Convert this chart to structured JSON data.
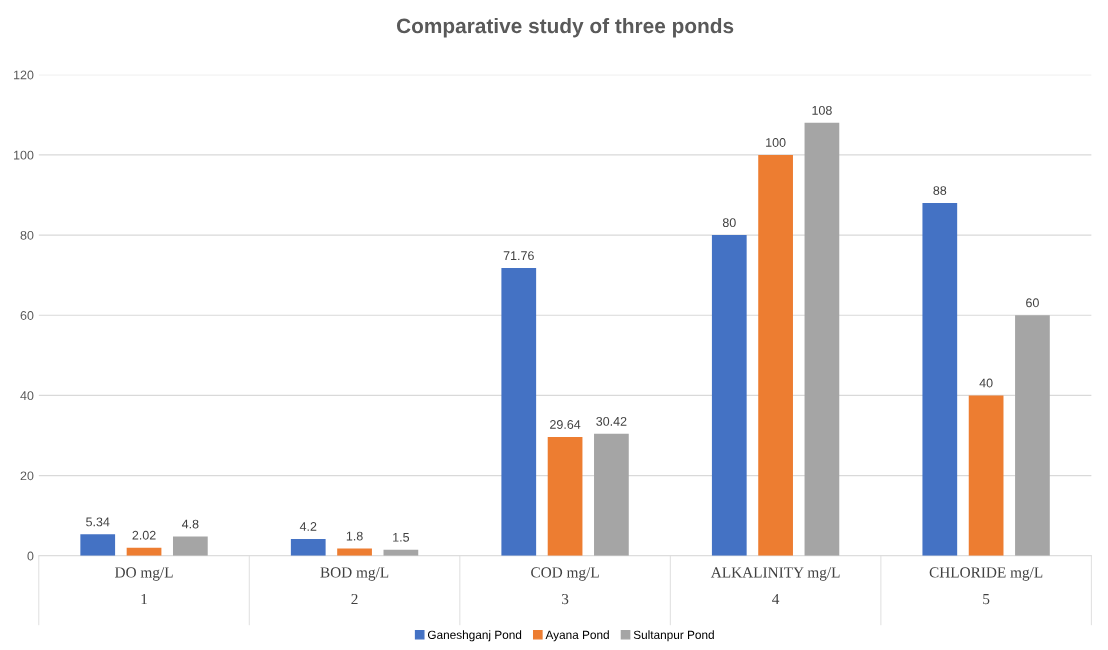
{
  "chart_data": {
    "type": "bar",
    "title": "Comparative study of three ponds",
    "categories": [
      "DO mg/L\n1",
      "BOD mg/L\n2",
      "COD mg/L\n3",
      "ALKALINITY mg/L\n4",
      "CHLORIDE mg/L\n5"
    ],
    "series": [
      {
        "name": "Ganeshganj Pond",
        "color": "#4472c4",
        "values": [
          5.34,
          4.2,
          71.76,
          80,
          88
        ]
      },
      {
        "name": "Ayana Pond",
        "color": "#ed7d31",
        "values": [
          2.02,
          1.8,
          29.64,
          100,
          40
        ]
      },
      {
        "name": "Sultanpur Pond",
        "color": "#a5a5a5",
        "values": [
          4.8,
          1.5,
          30.42,
          108,
          60
        ]
      }
    ],
    "ylim": [
      0,
      120
    ],
    "yticks": [
      0,
      20,
      40,
      60,
      80,
      100,
      120
    ],
    "grid": "y",
    "legend": "bottom",
    "data_labels": true
  }
}
